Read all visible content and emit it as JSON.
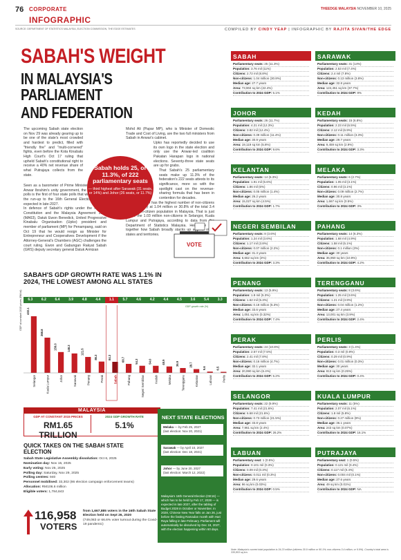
{
  "header": {
    "page_number": "76",
    "section": "CORPORATE",
    "tag": "INFOGRAPHIC",
    "publication": "THEEDGE MALAYSIA",
    "date": "NOVEMBER 10, 2025",
    "source": "SOURCE: DEPARTMENT OF STATISTICS MALAYSIA, ELECTION COMMISSION, THE EDGE ESTIMATES",
    "compiled_by_label": "COMPILED BY",
    "compiled_by": "CINDY YEAP",
    "infographic_by_label": "INFOGRAPHIC BY",
    "infographic_by": "RAJITA SIVAN/THE EDGE"
  },
  "title": {
    "line1": "SABAH'S WEIGHT",
    "line2": "IN MALAYSIA'S PARLIAMENT",
    "line3": "AND FEDERATION"
  },
  "article": {
    "p1": "The upcoming Sabah state election on Nov 29 was already gearing up to be one of the state's most crowded and hardest to predict, filled with \"friendly fire\" and \"multi-cornered\" fights, even before the Kota Kinabalu High Court's Oct 17 ruling that upheld Sabah's constitutional right to receive a 40% net revenue share of what Putrajaya collects from the state.",
    "p2": "Seen as a barometer of Prime Minister Datuk Seri Anwar Ibrahim's unity government, the 17th Sabah polls is the first of four state polls that will be held in the run-up to the 16th General Election (GE16), expected in late-2027.",
    "p3": "In defence of Sabah's rights under the Federal Constitution and the Malaysia Agreement 1963 (MA63), Datuk Ewon Benedick, United Progressive Kinabalu Organisation (Upko) president and member of parliament (MP) for Penampang, said on Oct 19 that he would resign as Minister for Entrepreneur and Cooperatives Development if the Attorney-General's Chambers (AGC) challenges the court ruling. Ewon and Gabungan Rakyat Sabah (GRS) deputy secretary general Datuk Armizan",
    "p4": "Mohd Ali (Papar MP), who is Minister of Domestic Trade and Cost of Living, are the two full ministers from Sabah in Anwar's cabinet.",
    "p5": "Upko has reportedly decided to use its own logo in the state election and only use the Anwar-led coalition Pakatan Harapan logo in national elections. Seventy-three state seats are up for grabs.",
    "p6": "That Sabah's 25 parliamentary seats make up 11.3% of the federation's 222 seats attests to its significance, more so with the spotlight cast on the revenue-sharing formula that has been in contention for decades.",
    "p7": "Notably, Sabah has the highest number of non-citizens in the country at 1.04 million or 30.8% of the total 3.4 million non-citizen population in Malaysia. That is just above the 1.03 million non-citizens in Selangor, Kuala Lumpur and Putrajaya, according to data from the Department of Statistics Malaysia. Here, we put together how Sabah broadly stacks up against other states and territories."
  },
  "pull_quote": {
    "main": "Sabah holds 25, or 11.3%, of 222 parliamentary seats",
    "sub": "— third highest after Sarawak (31 seats, or 14%) and Johor (26 seats, or 11.7%)"
  },
  "vote_graphic": {
    "label": "VOTE"
  },
  "gdp": {
    "title": "SABAH'S GDP GROWTH RATE WAS 1.1% IN 2024, THE LOWEST AMONG ALL STATES",
    "legend": "GDP growth rate (%)",
    "ylabel": "GDP at constant 2015 prices (RM bil)"
  },
  "chart_data": {
    "type": "bar",
    "title": "SABAH'S GDP GROWTH RATE WAS 1.1% IN 2024, THE LOWEST AMONG ALL STATES",
    "ylabel": "GDP at constant 2015 prices (RM bil)",
    "categories": [
      "Selangor",
      "Kuala Lumpur",
      "Johor",
      "Sarawak",
      "Penang",
      "Perak",
      "Sabah",
      "Pahang",
      "Negeri Sembilan",
      "Kedah",
      "Melaka",
      "Terengganu",
      "Kelantan",
      "Labuan",
      "Perlis"
    ],
    "series": [
      {
        "name": "GDP at constant 2015 prices (RM bil)",
        "values": [
          432.1,
          268.8,
          159.0,
          148.2,
          121.5,
          86.2,
          84.3,
          68.7,
          54.3,
          54.0,
          48.9,
          36.9,
          28.7,
          9.6,
          6.5
        ]
      },
      {
        "name": "GDP growth rate (%)",
        "values": [
          6.3,
          6.2,
          6.4,
          3.9,
          4.8,
          4.4,
          1.1,
          5.7,
          4.6,
          4.2,
          4.4,
          4.5,
          3.6,
          5.4,
          3.3
        ]
      }
    ],
    "highlight": "Sabah",
    "bar_color": "#c41e24",
    "growth_strip_color": "#2e7d32"
  },
  "malaysia": {
    "title": "MALAYSIA",
    "gdp_label": "GDP AT CONSTANT 2015 PRICES",
    "gdp_value": "RM1.65 TRILLION",
    "growth_label": "2024 GDP GROWTH RATE",
    "growth_value": "5.1%"
  },
  "quick_takes": {
    "title": "QUICK TAKES ON THE SABAH STATE ELECTION",
    "items": [
      {
        "label": "Sabah State Legislative Assembly dissolution:",
        "value": "Oct 6, 2025"
      },
      {
        "label": "Nomination day:",
        "value": "Nov 15, 2025"
      },
      {
        "label": "Early voting:",
        "value": "Nov 25, 2025"
      },
      {
        "label": "Polling day:",
        "value": "Saturday, Nov 29, 2025"
      },
      {
        "label": "Polling centres:",
        "value": "940"
      },
      {
        "label": "Personnel mobilised:",
        "value": "33,302 (86 election campaign enforcement teams)"
      },
      {
        "label": "Allocation:",
        "value": "RM106.6 million"
      },
      {
        "label": "Eligible voters:",
        "value": "1,784,843"
      }
    ]
  },
  "voters": {
    "number": "116,958",
    "label": "VOTERS",
    "text_bold": "from 1,667,885 voters in the 16th Sabah State Election held on Sept 26, 2020",
    "text": "(749,083 or 66.6% voter turnout during the Covid-19 pandemic)"
  },
  "next_elections": {
    "title": "NEXT STATE ELECTIONS",
    "items": [
      {
        "state": "Melaka",
        "by": "— by Feb 25, 2027",
        "last": "(last election: Nov 20, 2021)"
      },
      {
        "state": "Sarawak",
        "by": "— by April 10, 2027",
        "last": "(last election: Dec 18, 2021)"
      },
      {
        "state": "Johor",
        "by": "— by June 20, 2027",
        "last": "(last election: March 12, 2022)"
      }
    ],
    "note": "Malaysia's 16th General Election (GE16) — which has to be held by Feb 17, 2028 — is expected in late 2027, after the tabling of Budget 2028 in October or November. In 2028, Chinese New Year falls on Jan 26, just before the fasting Ramadan month with Hari Raya falling in late-February. Parliament will automatically be dissolved by Dec 19, 2027, with the election happening within 60 days."
  },
  "states": [
    {
      "name": "SABAH",
      "rows": [
        [
          "Parliamentary seats:",
          "25 (11.3%)"
        ],
        [
          "Population:",
          "3.76 mil (11%)"
        ],
        [
          "Citizens:",
          "2.72 mil (8.8%)"
        ],
        [
          "Non-citizens:",
          "1.04 million (30.8%)"
        ],
        [
          "Median age:",
          "27.7 years"
        ],
        [
          "Area:",
          "73,904 sq km (22.4%)"
        ],
        [
          "Contribution to 2024 GDP:",
          "5.1%"
        ]
      ]
    },
    {
      "name": "SARAWAK",
      "rows": [
        [
          "Parliamentary seats:",
          "31 (14%)"
        ],
        [
          "Population:",
          "2.53 mil (7.4%)"
        ],
        [
          "Citizens:",
          "2.4 mil (7.8%)"
        ],
        [
          "Non-citizens:",
          "0.13 million (3.8%)"
        ],
        [
          "Median age:",
          "32.8 years"
        ],
        [
          "Area:",
          "124,451 sq km (37.7%)"
        ],
        [
          "Contribution to 2024 GDP:",
          "9%"
        ]
      ]
    },
    {
      "name": "JOHOR",
      "rows": [
        [
          "Parliamentary seats:",
          "26 (11.7%)"
        ],
        [
          "Population:",
          "4.21 mil (12.3%)"
        ],
        [
          "Citizens:",
          "3.82 mil (12.4%)"
        ],
        [
          "Non-citizens:",
          "0.39 million (11.4%)"
        ],
        [
          "Median age:",
          "30.9 years"
        ],
        [
          "Area:",
          "19,119 sq km (5.8%)"
        ],
        [
          "Contribution to 2024 GDP:",
          "9.6%"
        ]
      ]
    },
    {
      "name": "KEDAH",
      "rows": [
        [
          "Parliamentary seats:",
          "15 (6.8%)"
        ],
        [
          "Population:",
          "2.23 mil (6.5%)"
        ],
        [
          "Citizens:",
          "2.12 mil (6.9%)"
        ],
        [
          "Non-citizens:",
          "0.11 million (3.3%)"
        ],
        [
          "Median age:",
          "29.7 years"
        ],
        [
          "Area:",
          "9,459 sq km (2.9%)"
        ],
        [
          "Contribution to 2024 GDP:",
          "3.3%"
        ]
      ]
    },
    {
      "name": "KELANTAN",
      "rows": [
        [
          "Parliamentary seats:",
          "14 (6.3%)"
        ],
        [
          "Population:",
          "1.91 mil (5.6%)"
        ],
        [
          "Citizens:",
          "1.86 mil (6%)"
        ],
        [
          "Non-citizens:",
          "0.05 million (1.4%)"
        ],
        [
          "Median age:",
          "26.2 years"
        ],
        [
          "Area:",
          "15,027 sq km (4.5%)"
        ],
        [
          "Contribution to 2024 GDP:",
          "1.7%"
        ]
      ]
    },
    {
      "name": "MELAKA",
      "rows": [
        [
          "Parliamentary seats:",
          "6 (2.7%)"
        ],
        [
          "Population:",
          "1.05 mil (3.1%)"
        ],
        [
          "Citizens:",
          "0.96 mil (3.1%)"
        ],
        [
          "Non-citizens:",
          "0.09 million (2.7%)"
        ],
        [
          "Median age:",
          "30.8 years"
        ],
        [
          "Area:",
          "1,667 sq km (0.5%)"
        ],
        [
          "Contribution to 2024 GDP:",
          "3%"
        ]
      ]
    },
    {
      "name": "NEGERI SEMBILAN",
      "rows": [
        [
          "Parliamentary seats:",
          "8 (3.6%)"
        ],
        [
          "Population:",
          "1.24 mil (3.6%)"
        ],
        [
          "Citizens:",
          "1.17 mil (3.8%)"
        ],
        [
          "Non-citizens:",
          "0.07 million (2.2%)"
        ],
        [
          "Median age:",
          "31.3 years"
        ],
        [
          "Area:",
          "6,662 sq km (2%)"
        ],
        [
          "Contribution to 2024 GDP:",
          "3.3%"
        ]
      ]
    },
    {
      "name": "PAHANG",
      "rows": [
        [
          "Parliamentary seats:",
          "14 (6.3%)"
        ],
        [
          "Population:",
          "1.68 mil (4.9%)"
        ],
        [
          "Citizens:",
          "1.58 mil (5.1%)"
        ],
        [
          "Non-citizens:",
          "0.1 million (3%)"
        ],
        [
          "Median age:",
          "30 years"
        ],
        [
          "Area:",
          "35,950 sq km (10.9%)"
        ],
        [
          "Contribution to 2024 GDP:",
          "4.2%"
        ]
      ]
    },
    {
      "name": "PENANG",
      "rows": [
        [
          "Parliamentary seats:",
          "13 (5.9%)"
        ],
        [
          "Population:",
          "1.8 mil (5.3%)"
        ],
        [
          "Citizens:",
          "1.62 mil (5.3%)"
        ],
        [
          "Non-citizens:",
          "0.18 million (5.3%)"
        ],
        [
          "Median age:",
          "33.6 years"
        ],
        [
          "Area:",
          "1,051 sq km (0.32%)"
        ],
        [
          "Contribution to 2024 GDP:",
          "7.4%"
        ]
      ]
    },
    {
      "name": "TERENGGANU",
      "rows": [
        [
          "Parliamentary seats:",
          "8 (3.6%)"
        ],
        [
          "Population:",
          "1.25 mil (3.6%)"
        ],
        [
          "Citizens:",
          "1.21 mil (3.9%)"
        ],
        [
          "Non-citizens:",
          "0.04 million (1.2%)"
        ],
        [
          "Median age:",
          "27.4 years"
        ],
        [
          "Area:",
          "13,001 sq km (3.9%)"
        ],
        [
          "Contribution to 2024 GDP:",
          "2.4%"
        ]
      ]
    },
    {
      "name": "PERAK",
      "rows": [
        [
          "Parliamentary seats:",
          "24 (10.8%)"
        ],
        [
          "Population:",
          "2.57 mil (7.5%)"
        ],
        [
          "Citizens:",
          "2.41 mil (7.8%)"
        ],
        [
          "Non-citizens:",
          "0.16 million (4.7%)"
        ],
        [
          "Median age:",
          "32.1 years"
        ],
        [
          "Area:",
          "20,990 sq km (6.4%)"
        ],
        [
          "Contribution to 2024 GDP:",
          "5.2%"
        ]
      ]
    },
    {
      "name": "PERLIS",
      "rows": [
        [
          "Parliamentary seats:",
          "3 (1.4%)"
        ],
        [
          "Population:",
          "0.3 mil (0.9%)"
        ],
        [
          "Citizens:",
          "0.29 mil (0.9%)"
        ],
        [
          "Non-citizens:",
          "0.01 million (0.3%)"
        ],
        [
          "Median age:",
          "30 years"
        ],
        [
          "Area:",
          "813 sq km (0.25%)"
        ],
        [
          "Contribution to 2024 GDP:",
          "0.4%"
        ]
      ]
    },
    {
      "name": "SELANGOR",
      "rows": [
        [
          "Parliamentary seats:",
          "22 (9.9%)"
        ],
        [
          "Population:",
          "7.41 mil (21.6%)"
        ],
        [
          "Citizens:",
          "6.68 mil (21.6%)"
        ],
        [
          "Non-citizens:",
          "0.73 million (21.5%)"
        ],
        [
          "Median age:",
          "33.8 years"
        ],
        [
          "Area:",
          "7,961 sq km (2.4%)"
        ],
        [
          "Contribution to 2024 GDP:",
          "26.2%"
        ]
      ]
    },
    {
      "name": "KUALA LUMPUR",
      "rows": [
        [
          "Parliamentary seats:",
          "11 (5%)"
        ],
        [
          "Population:",
          "2.07 mil (6.1%)"
        ],
        [
          "Citizens:",
          "1.8 mil (5.8%)"
        ],
        [
          "Non-citizens:",
          "0.27 million (8%)"
        ],
        [
          "Median age:",
          "36.1 years"
        ],
        [
          "Area:",
          "243 sq km (0.07%)"
        ],
        [
          "Contribution to 2024 GDP:",
          "16.1%"
        ]
      ]
    },
    {
      "name": "LABUAN",
      "rows": [
        [
          "Parliamentary seat:",
          "1 (0.5%)"
        ],
        [
          "Population:",
          "0.101 mil (0.3%)"
        ],
        [
          "Citizens:",
          "0.09 mil (0.3%)"
        ],
        [
          "Non-citizens:",
          "0.011 mil (0.3%)"
        ],
        [
          "Median age:",
          "29.6 years"
        ],
        [
          "Area:",
          "96 sq km (0.03%)"
        ],
        [
          "Contribution to 2024 GDP:",
          "0.5%"
        ]
      ]
    },
    {
      "name": "PUTRAJAYA",
      "rows": [
        [
          "Parliamentary seat:",
          "1 (0.5%)"
        ],
        [
          "Population:",
          "0.121 mil (0.4%)"
        ],
        [
          "Citizens:",
          "0.117 mil (0.4%)"
        ],
        [
          "Non-citizens:",
          "0.004 mil (0.1%)"
        ],
        [
          "Median age:",
          "27.6 years"
        ],
        [
          "Area:",
          "49 sq km (0.01%)"
        ],
        [
          "Contribution to 2024 GDP:",
          "NA"
        ]
      ]
    }
  ],
  "note": "Note: Malaysia's current total population is 34.23 million (citizens 30.9 million or 90.1%; non-citizens 3.4 million, or 9.9%). Country's total area is 330,803 sq km."
}
